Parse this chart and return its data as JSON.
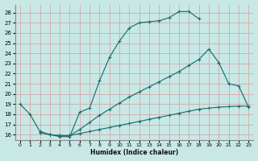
{
  "xlabel": "Humidex (Indice chaleur)",
  "bg_color": "#c8e8e5",
  "grid_color": "#d4a8a8",
  "line_color": "#1a7070",
  "ylim": [
    15.5,
    28.8
  ],
  "xlim": [
    -0.5,
    23.5
  ],
  "yticks": [
    16,
    17,
    18,
    19,
    20,
    21,
    22,
    23,
    24,
    25,
    26,
    27,
    28
  ],
  "xticks": [
    0,
    1,
    2,
    3,
    4,
    5,
    6,
    7,
    8,
    9,
    10,
    11,
    12,
    13,
    14,
    15,
    16,
    17,
    18,
    19,
    20,
    21,
    22,
    23
  ],
  "curves": [
    {
      "x": [
        0,
        1,
        2,
        3,
        4,
        5,
        6,
        7,
        8,
        9,
        10,
        11,
        12,
        13,
        14,
        15,
        16,
        17,
        18
      ],
      "y": [
        19,
        18,
        16.3,
        16,
        15.8,
        15.8,
        18.2,
        18.6,
        21.3,
        23.6,
        25.2,
        26.5,
        27.0,
        27.1,
        27.2,
        27.5,
        28.1,
        28.1,
        27.4
      ]
    },
    {
      "x": [
        2,
        3,
        4,
        5,
        6,
        7,
        8,
        9,
        10,
        11,
        12,
        13,
        14,
        15,
        16,
        17,
        18,
        19,
        20,
        21,
        22,
        23
      ],
      "y": [
        16.2,
        16.0,
        15.9,
        15.9,
        16.5,
        17.2,
        17.9,
        18.5,
        19.1,
        19.7,
        20.2,
        20.7,
        21.2,
        21.7,
        22.2,
        22.8,
        23.4,
        24.4,
        23.1,
        21.0,
        20.8,
        18.7
      ]
    },
    {
      "x": [
        2,
        3,
        4,
        5,
        6,
        7,
        8,
        9,
        10,
        11,
        12,
        13,
        14,
        15,
        16,
        17,
        18,
        19,
        20,
        21,
        22,
        23
      ],
      "y": [
        16.2,
        16.0,
        15.9,
        15.9,
        16.1,
        16.3,
        16.5,
        16.7,
        16.9,
        17.1,
        17.3,
        17.5,
        17.7,
        17.9,
        18.1,
        18.3,
        18.5,
        18.6,
        18.7,
        18.75,
        18.8,
        18.8
      ]
    }
  ]
}
